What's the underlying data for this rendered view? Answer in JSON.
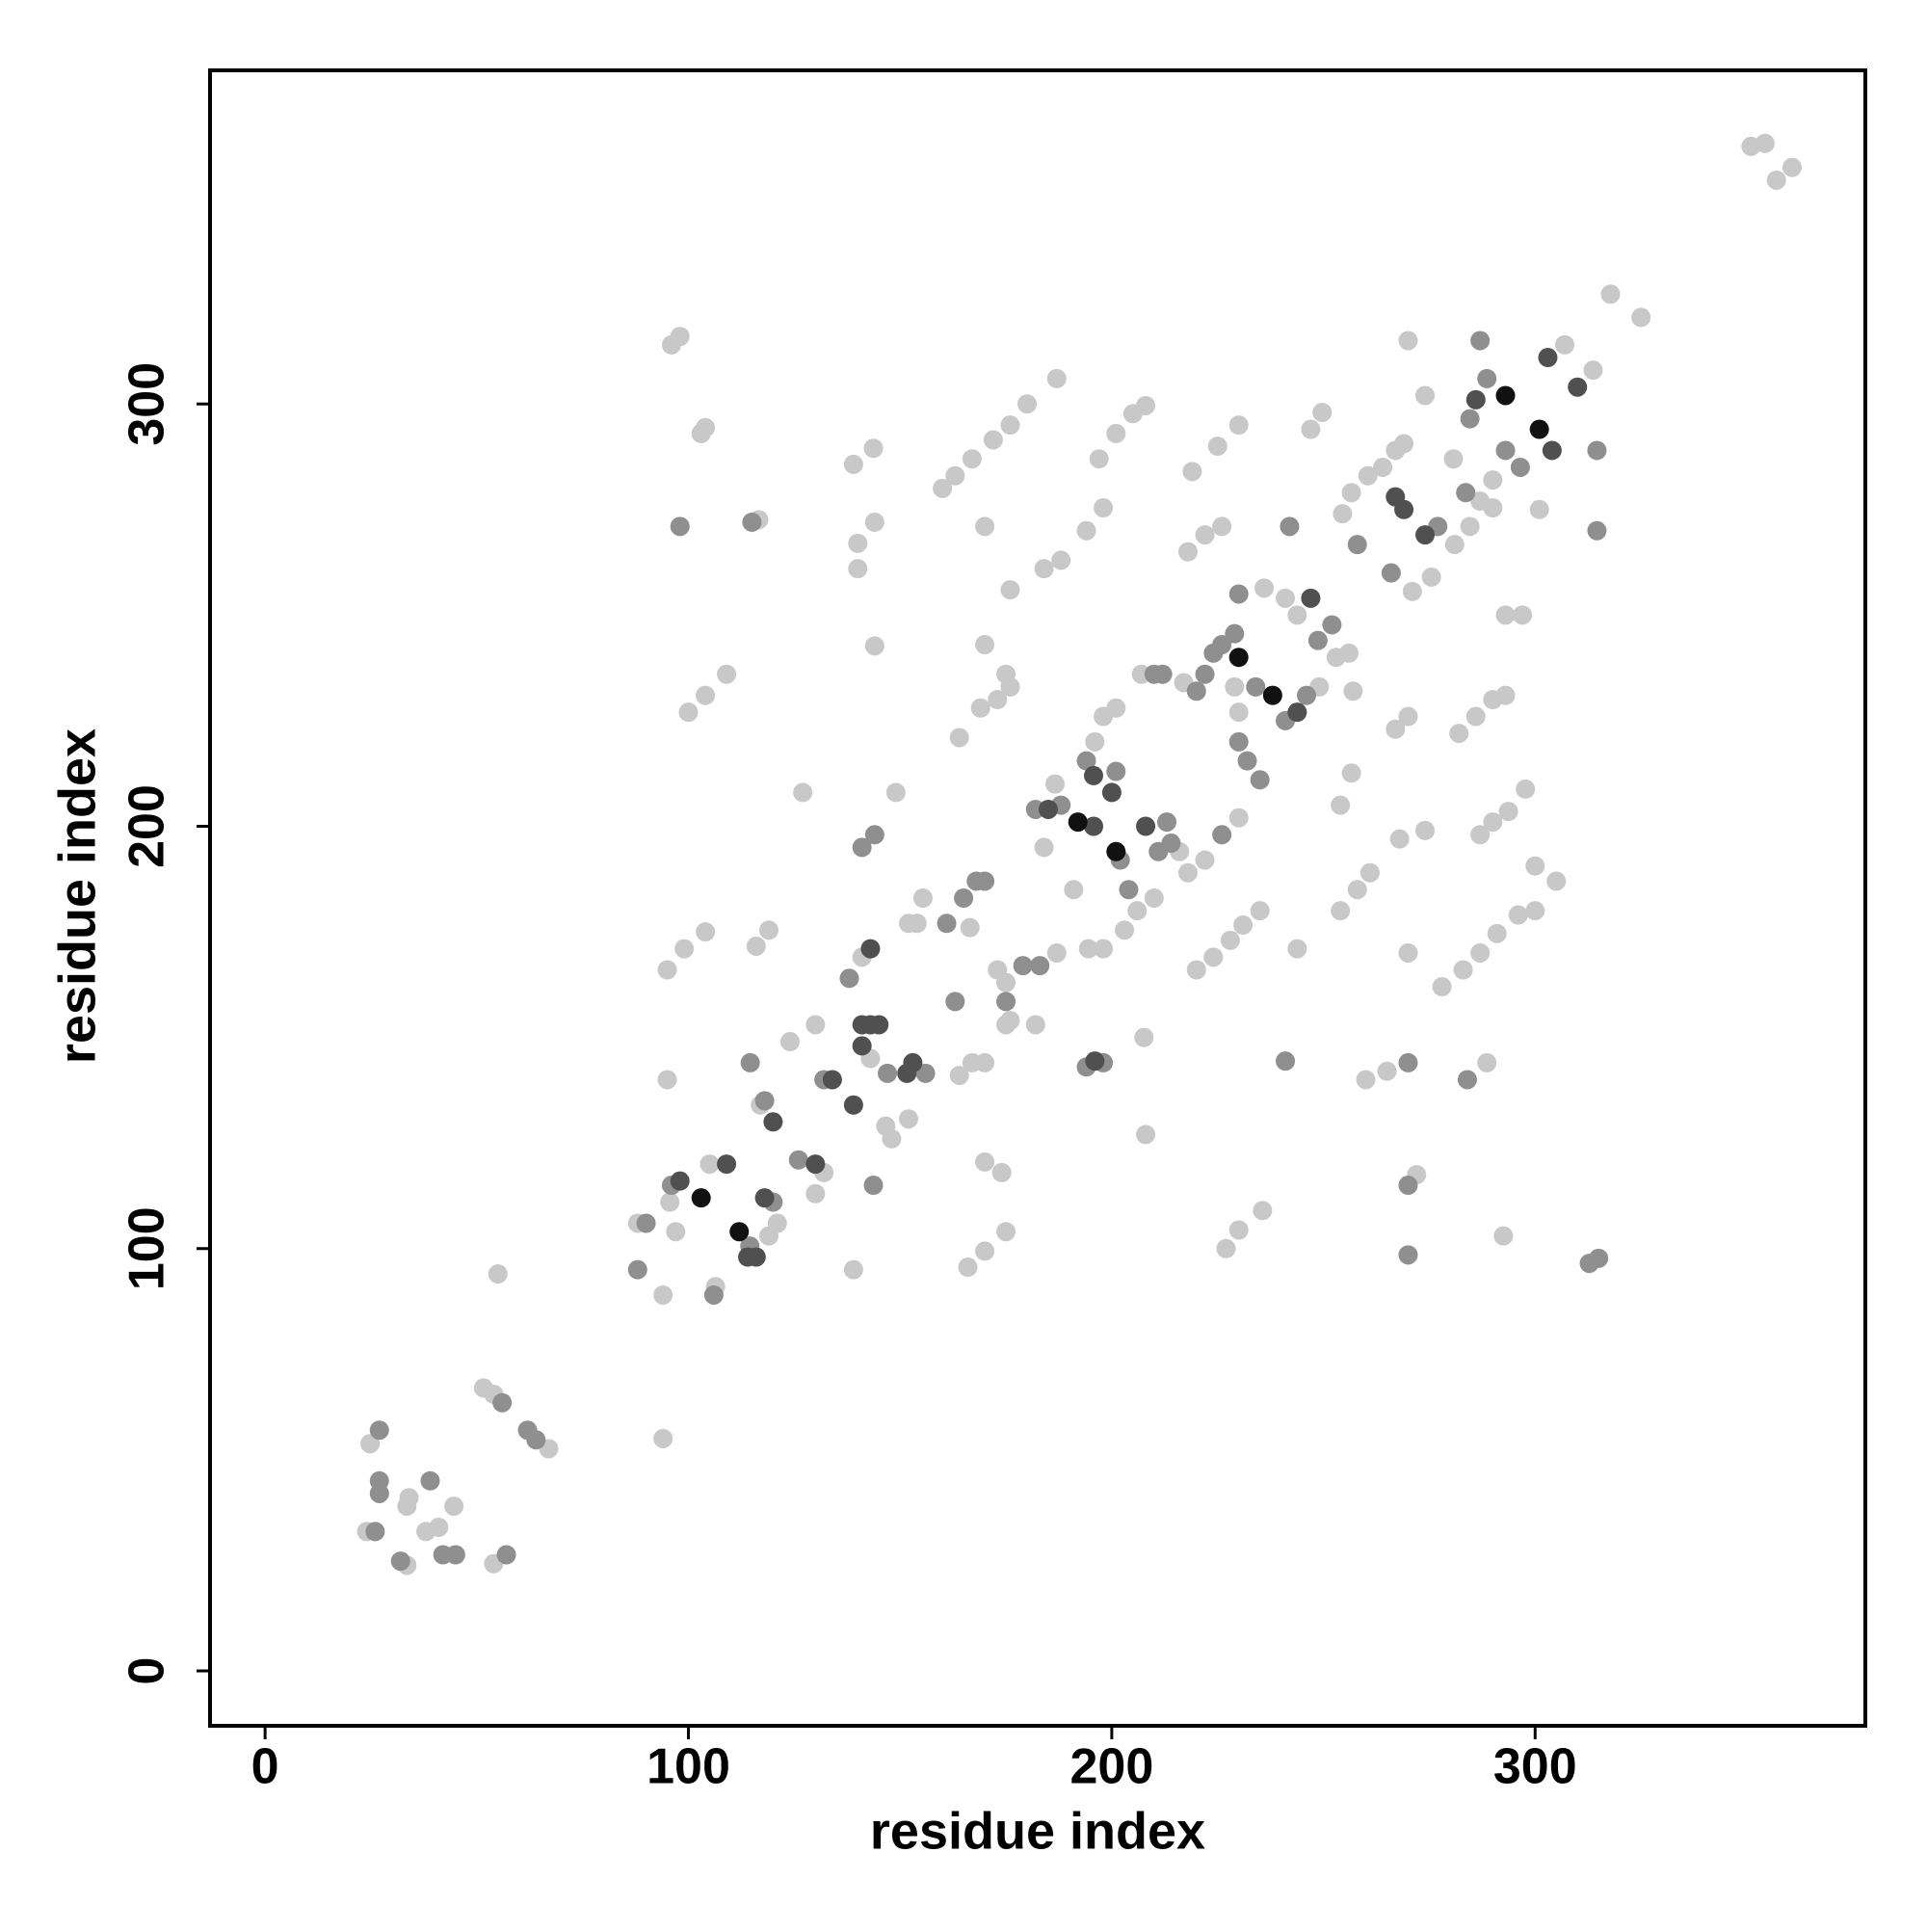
{
  "chart_data": {
    "type": "scatter",
    "xlabel": "residue index",
    "ylabel": "residue index",
    "xlim": [
      -13,
      378
    ],
    "ylim": [
      -13,
      379
    ],
    "xticks": [
      0,
      100,
      200,
      300
    ],
    "yticks": [
      0,
      100,
      200,
      300
    ],
    "series": [
      {
        "color": "#c8c8c8",
        "x": [
          24.8,
          24,
          33.5,
          34,
          38,
          41,
          44.6,
          33.5,
          54,
          51.6,
          54,
          67,
          55,
          94,
          88,
          94,
          95.6,
          97,
          105,
          106.4,
          119,
          121,
          117,
          130,
          132,
          124,
          130,
          146.6,
          152,
          148,
          127,
          139,
          149,
          141,
          143,
          152,
          154,
          155.4,
          166.5,
          164,
          167,
          170,
          173,
          175,
          176,
          187,
          175,
          182,
          186.6,
          203,
          216,
          218,
          210,
          206,
          184,
          191,
          194.5,
          198,
          207.6,
          208,
          207,
          217,
          229,
          230,
          230,
          222,
          249,
          253,
          256,
          243.8,
          241,
          236,
          257,
          254.5,
          256.6,
          260.5,
          264,
          267,
          269,
          271,
          275.5,
          281,
          284.6,
          287,
          290,
          307,
          313.7,
          301,
          270,
          274,
          280.7,
          290,
          163,
          167,
          172,
          176,
          180,
          187,
          160,
          197,
          201,
          205,
          208,
          219,
          225,
          230,
          247,
          249.7,
          176,
          184,
          188,
          194,
          198,
          218,
          222,
          226,
          164,
          169,
          173,
          176,
          175,
          170,
          198,
          201,
          196,
          254,
          256.6,
          267,
          270,
          282,
          286,
          290,
          293,
          293,
          297,
          287,
          290,
          293.7,
          297.7,
          300,
          305,
          278,
          283,
          287,
          291,
          296,
          300,
          254,
          258,
          261,
          268,
          274,
          220,
          224,
          228,
          231,
          235,
          243.8,
          260,
          265,
          288.6,
          270,
          272,
          292.5,
          227,
          230,
          235.6,
          317.8,
          325,
          351,
          354.3,
          357,
          360.7,
          96,
          98,
          103,
          104,
          116.6,
          139,
          143.7,
          140,
          140,
          144,
          144,
          100,
          104,
          109,
          95,
          99,
          104,
          116,
          119,
          95,
          170,
          174,
          166,
          170,
          175,
          170
        ],
        "values": [
          53.8,
          33,
          39,
          41,
          33,
          34,
          39,
          25,
          25.4,
          67,
          65.5,
          52.6,
          94,
          55,
          106,
          89,
          111,
          104,
          120,
          91,
          103,
          106,
          134,
          113,
          118,
          149,
          153,
          129,
          130.7,
          126,
          208,
          95,
          208,
          169,
          145,
          177,
          177,
          183,
          176,
          141,
          144,
          144,
          166,
          163,
          154,
          170,
          153,
          153,
          210,
          175.4,
          194,
          189,
          183,
          180,
          195,
          185,
          171,
          171,
          150,
          127,
          236,
          234,
          233,
          227,
          202,
          192,
          233,
          240,
          241,
          250,
          254,
          256.4,
          232,
          274,
          279,
          283,
          285,
          289,
          290.6,
          255.6,
          259,
          266.7,
          271,
          277,
          275.4,
          314,
          308,
          275,
          315,
          302,
          287,
          282,
          283,
          287,
          291.5,
          295,
          300,
          306,
          280,
          287,
          293,
          297.7,
          299.6,
          284,
          290,
          295,
          294,
          298,
          256,
          261,
          263,
          270,
          275.4,
          265,
          269,
          271,
          221,
          228,
          230,
          233,
          236,
          243,
          226,
          228,
          220,
          205,
          212.6,
          223,
          226,
          222,
          226,
          230,
          231,
          250,
          250,
          198,
          201,
          203.5,
          208.8,
          190.6,
          187,
          162,
          166,
          170,
          174.6,
          179,
          180,
          180,
          185,
          189,
          197,
          199,
          166,
          169,
          173,
          176.6,
          180,
          171,
          140,
          142,
          144,
          170,
          117.5,
          103,
          100,
          104.4,
          109,
          326,
          320.5,
          361,
          361.7,
          353,
          356,
          314,
          316,
          293,
          294.4,
          272.6,
          285.7,
          289.5,
          261,
          267,
          272,
          242.7,
          227,
          231,
          236,
          166,
          171,
          175,
          171.6,
          175.4,
          140,
          120.5,
          118,
          95.6,
          99.4,
          104,
          271
        ]
      },
      {
        "color": "#8f8f8f",
        "x": [
          27,
          27,
          27,
          26,
          39,
          32,
          42,
          45,
          57,
          56,
          62,
          64,
          90,
          88,
          96,
          106,
          114.5,
          120,
          114.6,
          118,
          126,
          132,
          143.7,
          138,
          147,
          156,
          161,
          165,
          168,
          170,
          163,
          175,
          179,
          183,
          182,
          188,
          194,
          201,
          202,
          204,
          213,
          211,
          214,
          194,
          198,
          210,
          212,
          220,
          222,
          224,
          226,
          229,
          230,
          232,
          235,
          226,
          241,
          246,
          252,
          230,
          242,
          248.7,
          234,
          258,
          266,
          277,
          283.6,
          284.6,
          293,
          296.5,
          314.6,
          314.6,
          287,
          288.6,
          241,
          270,
          284,
          270,
          270,
          312.8,
          315,
          98,
          115,
          141,
          144
        ],
        "values": [
          57,
          45,
          42,
          33,
          45,
          26,
          27.5,
          27.5,
          27.5,
          63.5,
          57,
          54.7,
          106,
          95,
          115,
          89,
          100.6,
          111,
          144,
          135,
          121,
          140,
          115,
          164,
          141.5,
          141.5,
          177,
          183,
          187,
          187,
          158.5,
          158.5,
          167,
          167,
          204,
          205,
          215.5,
          213,
          192,
          185,
          201,
          194,
          196,
          143,
          144,
          236,
          236,
          232,
          236,
          241,
          243,
          245.6,
          220,
          215.5,
          211,
          198,
          225,
          231,
          247.7,
          255,
          271,
          244,
          233,
          266.7,
          260,
          271,
          279,
          296.5,
          289,
          285,
          289,
          270,
          315,
          306,
          144.4,
          144,
          140,
          115,
          98.5,
          96.5,
          97.7,
          271,
          272,
          195,
          198
        ]
      },
      {
        "color": "#505050",
        "x": [
          98,
          109,
          114,
          116,
          118,
          120,
          130,
          134,
          139,
          143,
          141,
          143,
          145,
          141,
          151.6,
          153,
          185,
          195.7,
          195.7,
          200,
          208,
          196,
          243.8,
          247,
          267,
          269,
          274,
          286,
          304,
          303,
          310
        ],
        "values": [
          116,
          120,
          98,
          98,
          112,
          130,
          120,
          140,
          134,
          171,
          153,
          153,
          153,
          148,
          141.5,
          144,
          204,
          212,
          200,
          208,
          200,
          144.4,
          227,
          254,
          278,
          275,
          269,
          301,
          289,
          311,
          304
        ]
      },
      {
        "color": "#111111",
        "x": [
          103,
          112,
          192,
          201,
          230,
          238,
          293,
          301
        ],
        "values": [
          112,
          104,
          201,
          194,
          240,
          231,
          302,
          294
        ]
      }
    ]
  }
}
